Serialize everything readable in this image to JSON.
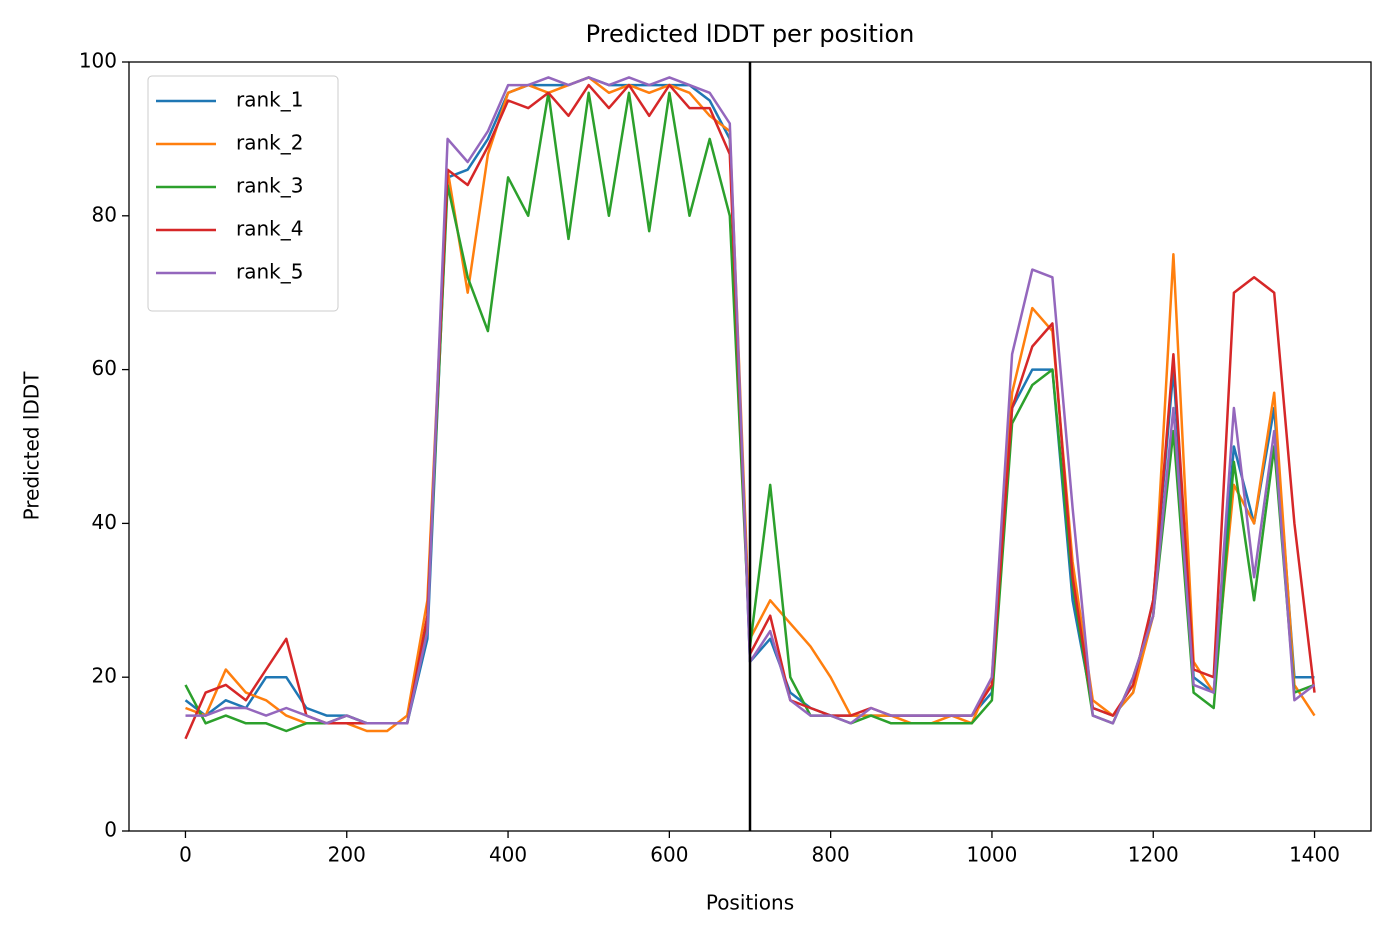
{
  "chart_data": {
    "type": "line",
    "title": "Predicted lDDT per position",
    "xlabel": "Positions",
    "ylabel": "Predicted lDDT",
    "x": [
      0,
      25,
      50,
      75,
      100,
      125,
      150,
      175,
      200,
      225,
      250,
      275,
      300,
      325,
      350,
      375,
      400,
      425,
      450,
      475,
      500,
      525,
      550,
      575,
      600,
      625,
      650,
      675,
      700,
      725,
      750,
      775,
      800,
      825,
      850,
      875,
      900,
      925,
      950,
      975,
      1000,
      1025,
      1050,
      1075,
      1100,
      1125,
      1150,
      1175,
      1200,
      1225,
      1250,
      1275,
      1300,
      1325,
      1350,
      1375,
      1400
    ],
    "series": [
      {
        "name": "rank_1",
        "color": "#1f77b4",
        "values": [
          17,
          15,
          17,
          16,
          20,
          20,
          16,
          15,
          15,
          14,
          14,
          14,
          25,
          85,
          86,
          90,
          96,
          97,
          97,
          97,
          98,
          97,
          97,
          97,
          97,
          97,
          95,
          90,
          22,
          25,
          18,
          16,
          15,
          15,
          15,
          15,
          15,
          15,
          15,
          15,
          18,
          55,
          60,
          60,
          30,
          16,
          15,
          18,
          30,
          60,
          20,
          18,
          50,
          40,
          55,
          20,
          20
        ]
      },
      {
        "name": "rank_2",
        "color": "#ff7f0e",
        "values": [
          16,
          15,
          21,
          18,
          17,
          15,
          14,
          14,
          14,
          13,
          13,
          15,
          30,
          86,
          70,
          88,
          96,
          97,
          96,
          97,
          98,
          96,
          97,
          96,
          97,
          96,
          93,
          91,
          25,
          30,
          27,
          24,
          20,
          15,
          15,
          15,
          14,
          14,
          15,
          14,
          20,
          57,
          68,
          65,
          35,
          17,
          15,
          18,
          28,
          75,
          22,
          18,
          45,
          40,
          57,
          19,
          15
        ]
      },
      {
        "name": "rank_3",
        "color": "#2ca02c",
        "values": [
          19,
          14,
          15,
          14,
          14,
          13,
          14,
          14,
          15,
          14,
          14,
          14,
          27,
          84,
          72,
          65,
          85,
          80,
          96,
          77,
          96,
          80,
          96,
          78,
          96,
          80,
          90,
          80,
          24,
          45,
          20,
          15,
          15,
          14,
          15,
          14,
          14,
          14,
          14,
          14,
          17,
          53,
          58,
          60,
          32,
          15,
          14,
          20,
          28,
          52,
          18,
          16,
          48,
          30,
          50,
          18,
          19
        ]
      },
      {
        "name": "rank_4",
        "color": "#d62728",
        "values": [
          12,
          18,
          19,
          17,
          21,
          25,
          15,
          14,
          14,
          14,
          14,
          14,
          28,
          86,
          84,
          89,
          95,
          94,
          96,
          93,
          97,
          94,
          97,
          93,
          97,
          94,
          94,
          88,
          23,
          28,
          17,
          16,
          15,
          15,
          16,
          15,
          15,
          15,
          15,
          15,
          19,
          55,
          63,
          66,
          33,
          16,
          15,
          19,
          30,
          62,
          21,
          20,
          70,
          72,
          70,
          40,
          18
        ]
      },
      {
        "name": "rank_5",
        "color": "#9467bd",
        "values": [
          15,
          15,
          16,
          16,
          15,
          16,
          15,
          14,
          15,
          14,
          14,
          14,
          26,
          90,
          87,
          91,
          97,
          97,
          98,
          97,
          98,
          97,
          98,
          97,
          98,
          97,
          96,
          92,
          22,
          26,
          17,
          15,
          15,
          14,
          16,
          15,
          15,
          15,
          15,
          15,
          20,
          62,
          73,
          72,
          42,
          15,
          14,
          20,
          28,
          55,
          19,
          18,
          55,
          33,
          52,
          17,
          19
        ]
      }
    ],
    "vlines": [
      700
    ],
    "vline_color": "#000000",
    "xlim": [
      -70,
      1470
    ],
    "ylim": [
      0,
      100
    ],
    "xticks": [
      0,
      200,
      400,
      600,
      800,
      1000,
      1200,
      1400
    ],
    "yticks": [
      0,
      20,
      40,
      60,
      80,
      100
    ],
    "legend": "upper left",
    "grid": false
  }
}
